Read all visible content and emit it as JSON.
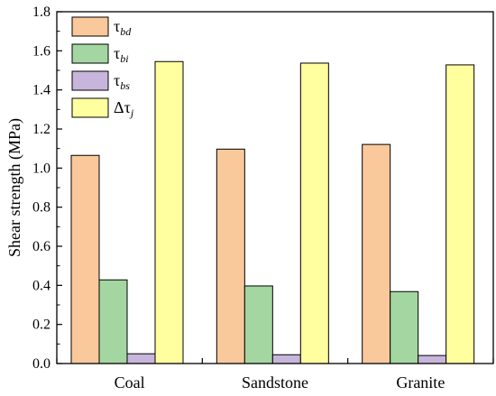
{
  "chart_data": {
    "type": "bar",
    "categories": [
      "Coal",
      "Sandstone",
      "Granite"
    ],
    "series": [
      {
        "name": "τ_bd",
        "base": "τ",
        "sub": "bd",
        "color": "#F9C89B",
        "values": [
          1.065,
          1.097,
          1.121
        ]
      },
      {
        "name": "τ_bi",
        "base": "τ",
        "sub": "bi",
        "color": "#A3D6A0",
        "values": [
          0.428,
          0.397,
          0.368
        ]
      },
      {
        "name": "τ_bs",
        "base": "τ",
        "sub": "bs",
        "color": "#C7B5DB",
        "values": [
          0.05,
          0.045,
          0.041
        ]
      },
      {
        "name": "Δτ_j",
        "base": "Δτ",
        "sub": "j",
        "color": "#FFFF9F",
        "values": [
          1.545,
          1.537,
          1.528
        ]
      }
    ],
    "ylabel": "Shear strength (MPa)",
    "xlabel": "",
    "ylim": [
      0,
      1.8
    ],
    "yticks": [
      "0.0",
      "0.2",
      "0.4",
      "0.6",
      "0.8",
      "1.0",
      "1.2",
      "1.4",
      "1.6",
      "1.8"
    ],
    "grid": false,
    "legend": "top-left"
  }
}
